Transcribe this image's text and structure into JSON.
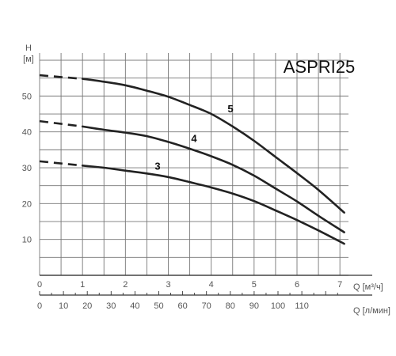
{
  "chart_data": {
    "type": "line",
    "title": "ASPRI25",
    "ylabel_top": "H",
    "ylabel_unit": "[м]",
    "xlabel_primary": "Q [м³/ч]",
    "xlabel_secondary": "Q [л/мин]",
    "xlim": [
      0,
      7.2
    ],
    "ylim": [
      0,
      62
    ],
    "x_ticks": [
      "0",
      "1",
      "2",
      "3",
      "4",
      "5",
      "6",
      "7"
    ],
    "y_ticks": [
      "10",
      "20",
      "30",
      "40",
      "50"
    ],
    "secondary_ticks": [
      "0",
      "10",
      "20",
      "30",
      "40",
      "50",
      "60",
      "70",
      "80",
      "90",
      "100",
      "110"
    ],
    "grid": true,
    "series": [
      {
        "name": "5",
        "dashed": [
          [
            0,
            55.8
          ],
          [
            1,
            54.8
          ]
        ],
        "points": [
          [
            1,
            54.8
          ],
          [
            1.5,
            54.0
          ],
          [
            2,
            53.0
          ],
          [
            2.5,
            51.5
          ],
          [
            3,
            49.8
          ],
          [
            3.5,
            47.5
          ],
          [
            4,
            45.0
          ],
          [
            4.5,
            41.5
          ],
          [
            5,
            37.5
          ],
          [
            5.5,
            33.0
          ],
          [
            6,
            28.5
          ],
          [
            6.5,
            23.8
          ],
          [
            7.1,
            17.5
          ]
        ]
      },
      {
        "name": "4",
        "dashed": [
          [
            0,
            43.0
          ],
          [
            1,
            41.5
          ]
        ],
        "points": [
          [
            1,
            41.5
          ],
          [
            1.5,
            40.6
          ],
          [
            2,
            39.8
          ],
          [
            2.5,
            38.8
          ],
          [
            3,
            37.2
          ],
          [
            3.5,
            35.3
          ],
          [
            4,
            33.2
          ],
          [
            4.5,
            30.8
          ],
          [
            5,
            27.8
          ],
          [
            5.5,
            24.2
          ],
          [
            6,
            20.6
          ],
          [
            6.5,
            16.6
          ],
          [
            7.1,
            12.0
          ]
        ]
      },
      {
        "name": "3",
        "dashed": [
          [
            0,
            31.8
          ],
          [
            1,
            30.6
          ]
        ],
        "points": [
          [
            1,
            30.6
          ],
          [
            1.5,
            30.0
          ],
          [
            2,
            29.2
          ],
          [
            2.5,
            28.4
          ],
          [
            3,
            27.4
          ],
          [
            3.5,
            26.0
          ],
          [
            4,
            24.5
          ],
          [
            4.5,
            22.8
          ],
          [
            5,
            20.7
          ],
          [
            5.5,
            18.1
          ],
          [
            6,
            15.4
          ],
          [
            6.5,
            12.5
          ],
          [
            7.1,
            8.8
          ]
        ]
      }
    ],
    "colors": {
      "curve": "#222222",
      "grid": "#777777",
      "axis_text": "#555555"
    }
  }
}
